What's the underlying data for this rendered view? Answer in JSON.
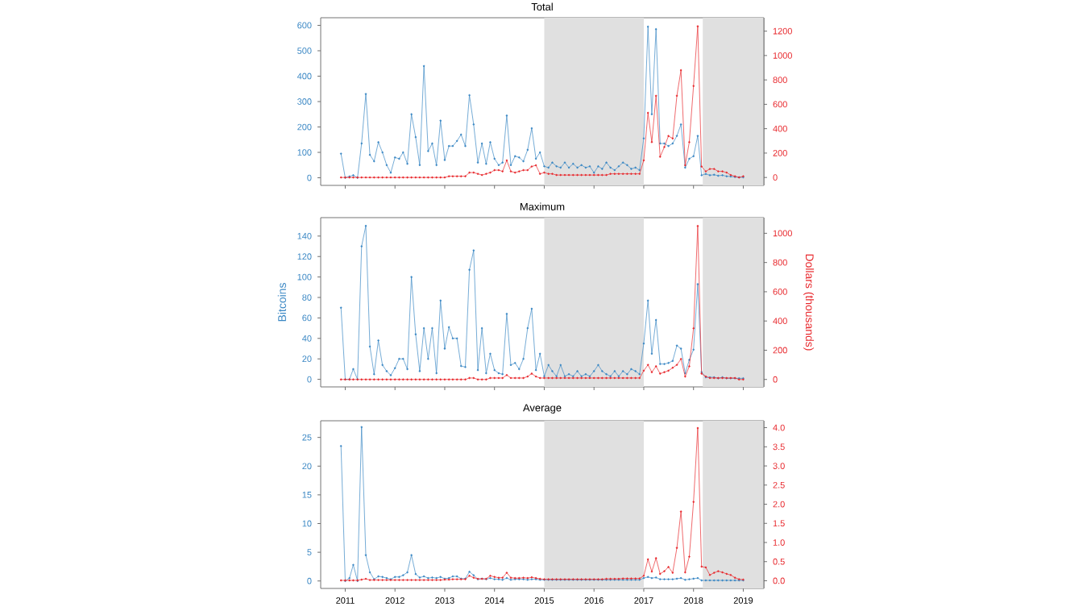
{
  "chart_data": [
    {
      "type": "line",
      "title": "Total",
      "marker": "circle",
      "line_style": "solid",
      "tick_labels": "y",
      "x": [
        "2010-12",
        "2011-01",
        "2011-02",
        "2011-03",
        "2011-04",
        "2011-05",
        "2011-06",
        "2011-07",
        "2011-08",
        "2011-09",
        "2011-10",
        "2011-11",
        "2011-12",
        "2012-01",
        "2012-02",
        "2012-03",
        "2012-04",
        "2012-05",
        "2012-06",
        "2012-07",
        "2012-08",
        "2012-09",
        "2012-10",
        "2012-11",
        "2012-12",
        "2013-01",
        "2013-02",
        "2013-03",
        "2013-04",
        "2013-05",
        "2013-06",
        "2013-07",
        "2013-08",
        "2013-09",
        "2013-10",
        "2013-11",
        "2013-12",
        "2014-01",
        "2014-02",
        "2014-03",
        "2014-04",
        "2014-05",
        "2014-06",
        "2014-07",
        "2014-08",
        "2014-09",
        "2014-10",
        "2014-11",
        "2014-12",
        "2015-01",
        "2015-02",
        "2015-03",
        "2015-04",
        "2015-05",
        "2015-06",
        "2015-07",
        "2015-08",
        "2015-09",
        "2015-10",
        "2015-11",
        "2015-12",
        "2016-01",
        "2016-02",
        "2016-03",
        "2016-04",
        "2016-05",
        "2016-06",
        "2016-07",
        "2016-08",
        "2016-09",
        "2016-10",
        "2016-11",
        "2016-12",
        "2017-01",
        "2017-02",
        "2017-03",
        "2017-04",
        "2017-05",
        "2017-06",
        "2017-07",
        "2017-08",
        "2017-09",
        "2017-10",
        "2017-11",
        "2017-12",
        "2018-01",
        "2018-02",
        "2018-03",
        "2018-04",
        "2018-05",
        "2018-06",
        "2018-07",
        "2018-08",
        "2018-09",
        "2018-10",
        "2018-11",
        "2018-12",
        "2019-01"
      ],
      "xlim": [
        "2010-07-05",
        "2019-06-01"
      ],
      "xticks": [
        "2011",
        "2012",
        "2013",
        "2014",
        "2015",
        "2016",
        "2017",
        "2018",
        "2019"
      ],
      "ylim": [
        -30,
        630
      ],
      "yticks": [
        0,
        100,
        200,
        300,
        400,
        500,
        600
      ],
      "y2lim": [
        -65,
        1310
      ],
      "y2ticks": [
        0,
        200,
        400,
        600,
        800,
        1000,
        1200
      ],
      "bands": [
        {
          "axis": "x",
          "from": "2015-01-01",
          "to": "2017-01-01",
          "color": "#e0e0e0"
        },
        {
          "axis": "x",
          "from": "2018-03-10",
          "to": "2019-06-01",
          "color": "#e0e0e0"
        }
      ],
      "series": [
        {
          "color": "#3a87c4",
          "values": [
            95,
            0,
            5,
            10,
            0,
            135,
            330,
            90,
            65,
            140,
            100,
            50,
            20,
            80,
            75,
            100,
            55,
            250,
            160,
            50,
            440,
            105,
            135,
            50,
            225,
            70,
            125,
            125,
            145,
            170,
            125,
            325,
            210,
            60,
            135,
            55,
            140,
            75,
            50,
            60,
            245,
            50,
            85,
            80,
            65,
            110,
            195,
            75,
            100,
            45,
            40,
            60,
            45,
            40,
            60,
            40,
            55,
            40,
            50,
            40,
            45,
            20,
            45,
            35,
            60,
            40,
            30,
            45,
            60,
            50,
            35,
            40,
            30,
            155,
            595,
            250,
            585,
            135,
            135,
            125,
            135,
            165,
            210,
            40,
            75,
            85,
            165,
            10,
            15,
            10,
            12,
            8,
            10,
            6,
            5,
            3,
            2,
            2
          ]
        },
        {
          "color": "#e8282d",
          "axis": "y2",
          "values": [
            0,
            0,
            0,
            0,
            0,
            0,
            0,
            0,
            0,
            0,
            0,
            0,
            0,
            0,
            0,
            0,
            0,
            0,
            0,
            0,
            0,
            0,
            0,
            0,
            0,
            0,
            10,
            10,
            10,
            10,
            10,
            40,
            40,
            30,
            20,
            30,
            40,
            60,
            60,
            50,
            140,
            50,
            40,
            50,
            60,
            60,
            90,
            100,
            30,
            40,
            30,
            30,
            20,
            20,
            20,
            20,
            20,
            20,
            20,
            20,
            20,
            20,
            20,
            20,
            20,
            30,
            30,
            30,
            30,
            30,
            30,
            30,
            30,
            140,
            530,
            290,
            670,
            170,
            250,
            340,
            320,
            670,
            880,
            100,
            290,
            750,
            1240,
            90,
            50,
            70,
            70,
            50,
            50,
            40,
            20,
            10,
            0,
            10
          ]
        }
      ]
    },
    {
      "type": "line",
      "title": "Maximum",
      "ylabel": "Bitcoins",
      "y2label": "Dollars (thousands)",
      "marker": "circle",
      "line_style": "solid",
      "tick_labels": "y",
      "x": [
        "2010-12",
        "2011-01",
        "2011-02",
        "2011-03",
        "2011-04",
        "2011-05",
        "2011-06",
        "2011-07",
        "2011-08",
        "2011-09",
        "2011-10",
        "2011-11",
        "2011-12",
        "2012-01",
        "2012-02",
        "2012-03",
        "2012-04",
        "2012-05",
        "2012-06",
        "2012-07",
        "2012-08",
        "2012-09",
        "2012-10",
        "2012-11",
        "2012-12",
        "2013-01",
        "2013-02",
        "2013-03",
        "2013-04",
        "2013-05",
        "2013-06",
        "2013-07",
        "2013-08",
        "2013-09",
        "2013-10",
        "2013-11",
        "2013-12",
        "2014-01",
        "2014-02",
        "2014-03",
        "2014-04",
        "2014-05",
        "2014-06",
        "2014-07",
        "2014-08",
        "2014-09",
        "2014-10",
        "2014-11",
        "2014-12",
        "2015-01",
        "2015-02",
        "2015-03",
        "2015-04",
        "2015-05",
        "2015-06",
        "2015-07",
        "2015-08",
        "2015-09",
        "2015-10",
        "2015-11",
        "2015-12",
        "2016-01",
        "2016-02",
        "2016-03",
        "2016-04",
        "2016-05",
        "2016-06",
        "2016-07",
        "2016-08",
        "2016-09",
        "2016-10",
        "2016-11",
        "2016-12",
        "2017-01",
        "2017-02",
        "2017-03",
        "2017-04",
        "2017-05",
        "2017-06",
        "2017-07",
        "2017-08",
        "2017-09",
        "2017-10",
        "2017-11",
        "2017-12",
        "2018-01",
        "2018-02",
        "2018-03",
        "2018-04",
        "2018-05",
        "2018-06",
        "2018-07",
        "2018-08",
        "2018-09",
        "2018-10",
        "2018-11",
        "2018-12",
        "2019-01"
      ],
      "xlim": [
        "2010-07-05",
        "2019-06-01"
      ],
      "xticks": [
        "2011",
        "2012",
        "2013",
        "2014",
        "2015",
        "2016",
        "2017",
        "2018",
        "2019"
      ],
      "ylim": [
        -7.4,
        158
      ],
      "yticks": [
        0,
        20,
        40,
        60,
        80,
        100,
        120,
        140
      ],
      "y2lim": [
        -51,
        1107
      ],
      "y2ticks": [
        0,
        200,
        400,
        600,
        800,
        1000
      ],
      "bands": [
        {
          "axis": "x",
          "from": "2015-01-01",
          "to": "2017-01-01",
          "color": "#e0e0e0"
        },
        {
          "axis": "x",
          "from": "2018-03-10",
          "to": "2019-06-01",
          "color": "#e0e0e0"
        }
      ],
      "series": [
        {
          "color": "#3a87c4",
          "values": [
            70,
            0,
            0,
            10,
            0,
            130,
            150,
            32,
            5,
            38,
            14,
            8,
            4,
            11,
            20,
            20,
            10,
            100,
            44,
            8,
            50,
            20,
            50,
            6,
            77,
            30,
            51,
            40,
            40,
            13,
            12,
            107,
            126,
            9,
            50,
            6,
            25,
            9,
            6,
            5,
            64,
            14,
            16,
            10,
            20,
            50,
            69,
            9,
            25,
            3,
            14,
            8,
            3,
            14,
            3,
            5,
            3,
            8,
            3,
            5,
            3,
            8,
            14,
            8,
            5,
            3,
            8,
            3,
            8,
            5,
            10,
            8,
            5,
            35,
            77,
            25,
            58,
            15,
            15,
            16,
            18,
            33,
            30,
            6,
            19,
            29,
            93,
            7,
            2,
            2,
            2,
            1,
            2,
            1,
            1,
            1,
            1,
            1
          ]
        },
        {
          "color": "#e8282d",
          "axis": "y2",
          "values": [
            0,
            0,
            0,
            0,
            0,
            0,
            0,
            0,
            0,
            0,
            0,
            0,
            0,
            0,
            0,
            0,
            0,
            0,
            0,
            0,
            0,
            0,
            0,
            0,
            0,
            0,
            0,
            0,
            0,
            0,
            0,
            10,
            10,
            0,
            0,
            0,
            10,
            10,
            10,
            10,
            30,
            10,
            10,
            10,
            10,
            20,
            40,
            20,
            10,
            10,
            10,
            10,
            10,
            10,
            10,
            10,
            10,
            10,
            10,
            10,
            10,
            10,
            10,
            10,
            10,
            10,
            10,
            10,
            10,
            10,
            10,
            10,
            10,
            60,
            100,
            50,
            90,
            40,
            50,
            60,
            80,
            100,
            140,
            20,
            90,
            350,
            1050,
            40,
            20,
            10,
            10,
            10,
            10,
            10,
            10,
            10,
            0,
            0
          ]
        }
      ]
    },
    {
      "type": "line",
      "title": "Average",
      "marker": "circle",
      "line_style": "solid",
      "x": [
        "2010-12",
        "2011-01",
        "2011-02",
        "2011-03",
        "2011-04",
        "2011-05",
        "2011-06",
        "2011-07",
        "2011-08",
        "2011-09",
        "2011-10",
        "2011-11",
        "2011-12",
        "2012-01",
        "2012-02",
        "2012-03",
        "2012-04",
        "2012-05",
        "2012-06",
        "2012-07",
        "2012-08",
        "2012-09",
        "2012-10",
        "2012-11",
        "2012-12",
        "2013-01",
        "2013-02",
        "2013-03",
        "2013-04",
        "2013-05",
        "2013-06",
        "2013-07",
        "2013-08",
        "2013-09",
        "2013-10",
        "2013-11",
        "2013-12",
        "2014-01",
        "2014-02",
        "2014-03",
        "2014-04",
        "2014-05",
        "2014-06",
        "2014-07",
        "2014-08",
        "2014-09",
        "2014-10",
        "2014-11",
        "2014-12",
        "2015-01",
        "2015-02",
        "2015-03",
        "2015-04",
        "2015-05",
        "2015-06",
        "2015-07",
        "2015-08",
        "2015-09",
        "2015-10",
        "2015-11",
        "2015-12",
        "2016-01",
        "2016-02",
        "2016-03",
        "2016-04",
        "2016-05",
        "2016-06",
        "2016-07",
        "2016-08",
        "2016-09",
        "2016-10",
        "2016-11",
        "2016-12",
        "2017-01",
        "2017-02",
        "2017-03",
        "2017-04",
        "2017-05",
        "2017-06",
        "2017-07",
        "2017-08",
        "2017-09",
        "2017-10",
        "2017-11",
        "2017-12",
        "2018-01",
        "2018-02",
        "2018-03",
        "2018-04",
        "2018-05",
        "2018-06",
        "2018-07",
        "2018-08",
        "2018-09",
        "2018-10",
        "2018-11",
        "2018-12",
        "2019-01"
      ],
      "xlim": [
        "2010-07-05",
        "2019-06-01"
      ],
      "xticks": [
        "2011",
        "2012",
        "2013",
        "2014",
        "2015",
        "2016",
        "2017",
        "2018",
        "2019"
      ],
      "ylim": [
        -1.3,
        27.9
      ],
      "yticks": [
        0,
        5,
        10,
        15,
        20,
        25
      ],
      "y2lim": [
        -0.2,
        4.18
      ],
      "y2ticks": [
        {
          "value": 0,
          "label": "0.0"
        },
        {
          "value": 0.5,
          "label": "0.5"
        },
        {
          "value": 1,
          "label": "1.0"
        },
        {
          "value": 1.5,
          "label": "1.5"
        },
        {
          "value": 2,
          "label": "2.0"
        },
        {
          "value": 2.5,
          "label": "2.5"
        },
        {
          "value": 3,
          "label": "3.0"
        },
        {
          "value": 3.5,
          "label": "3.5"
        },
        {
          "value": 4,
          "label": "4.0"
        }
      ],
      "bands": [
        {
          "axis": "x",
          "from": "2015-01-01",
          "to": "2017-01-01",
          "color": "#e0e0e0"
        },
        {
          "axis": "x",
          "from": "2018-03-10",
          "to": "2019-06-01",
          "color": "#e0e0e0"
        }
      ],
      "series": [
        {
          "color": "#3a87c4",
          "values": [
            23.5,
            0,
            0.5,
            2.8,
            0,
            26.8,
            4.5,
            1.5,
            0.3,
            0.8,
            0.7,
            0.5,
            0.3,
            0.7,
            0.7,
            1,
            1.5,
            4.5,
            1.2,
            0.6,
            0.8,
            0.5,
            0.6,
            0.5,
            0.7,
            0.4,
            0.5,
            0.8,
            0.8,
            0.4,
            0.4,
            1.6,
            1,
            0.3,
            0.4,
            0.3,
            0.5,
            0.3,
            0.3,
            0.2,
            0.5,
            0.2,
            0.3,
            0.3,
            0.3,
            0.2,
            0.3,
            0.3,
            0.2,
            0.2,
            0.2,
            0.2,
            0.2,
            0.2,
            0.2,
            0.2,
            0.2,
            0.2,
            0.2,
            0.2,
            0.2,
            0.2,
            0.2,
            0.2,
            0.2,
            0.2,
            0.2,
            0.2,
            0.2,
            0.2,
            0.2,
            0.2,
            0.2,
            0.5,
            0.7,
            0.5,
            0.6,
            0.3,
            0.3,
            0.3,
            0.3,
            0.4,
            0.5,
            0.2,
            0.3,
            0.4,
            0.5,
            0.1,
            0.1,
            0.1,
            0.1,
            0.1,
            0.1,
            0.1,
            0.1,
            0.1,
            0.1,
            0.1
          ]
        },
        {
          "color": "#e8282d",
          "axis": "y2",
          "values": [
            0.01,
            0.01,
            0.01,
            0.01,
            0.01,
            0.03,
            0.05,
            0.02,
            0.02,
            0.02,
            0.02,
            0.02,
            0.02,
            0.02,
            0.02,
            0.02,
            0.02,
            0.02,
            0.02,
            0.02,
            0.02,
            0.02,
            0.02,
            0.02,
            0.02,
            0.03,
            0.03,
            0.04,
            0.04,
            0.04,
            0.04,
            0.13,
            0.08,
            0.05,
            0.05,
            0.05,
            0.13,
            0.1,
            0.08,
            0.08,
            0.21,
            0.08,
            0.07,
            0.07,
            0.08,
            0.07,
            0.09,
            0.07,
            0.05,
            0.04,
            0.04,
            0.04,
            0.04,
            0.04,
            0.04,
            0.04,
            0.04,
            0.04,
            0.04,
            0.04,
            0.04,
            0.04,
            0.04,
            0.04,
            0.05,
            0.05,
            0.05,
            0.05,
            0.06,
            0.06,
            0.06,
            0.06,
            0.06,
            0.13,
            0.56,
            0.24,
            0.59,
            0.18,
            0.25,
            0.36,
            0.21,
            0.86,
            1.81,
            0.22,
            0.63,
            2.06,
            3.99,
            0.37,
            0.35,
            0.15,
            0.21,
            0.25,
            0.22,
            0.18,
            0.15,
            0.08,
            0.04,
            0.03
          ]
        }
      ]
    }
  ]
}
